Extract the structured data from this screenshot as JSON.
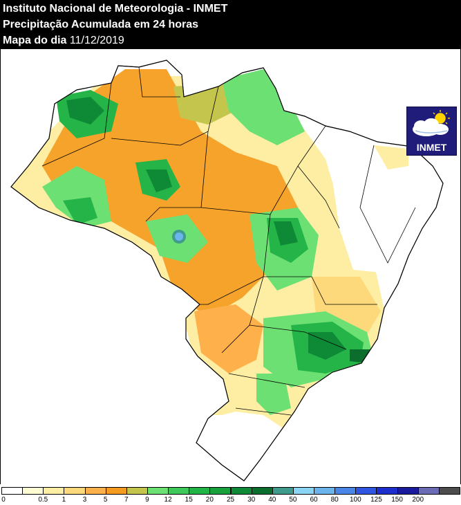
{
  "header": {
    "line1": "Instituto Nacional de Meteorologia - INMET",
    "line2": "Precipitação Acumulada em 24 horas",
    "line3_prefix": "Mapa do dia ",
    "date": "11/12/2019"
  },
  "logo": {
    "text": "INMET",
    "icon": "sun-cloud-icon"
  },
  "legend": {
    "colors": [
      "#ffffff",
      "#fefcd3",
      "#fdeea4",
      "#fed97c",
      "#feb04a",
      "#f69b21",
      "#c4c54c",
      "#6de073",
      "#3ec95a",
      "#21b447",
      "#18a13d",
      "#0e8a36",
      "#0b6e2d",
      "#3f9b8b",
      "#8ad4f4",
      "#6cb4ec",
      "#4a86e8",
      "#3055e0",
      "#1c2fcc",
      "#1a1a9c",
      "#6b6bb4",
      "#4d4d4d"
    ],
    "ticks": [
      "0",
      "0.5",
      "1",
      "3",
      "5",
      "7",
      "9",
      "12",
      "15",
      "20",
      "25",
      "30",
      "40",
      "50",
      "60",
      "80",
      "100",
      "125",
      "150",
      "200"
    ]
  },
  "colors": {
    "light_yellow": "#fdeea4",
    "orange": "#f6a32c",
    "olive": "#c4c54c",
    "light_green": "#6de073",
    "green": "#24b447",
    "dark_green": "#0e8a36",
    "blue": "#6cb4ec"
  }
}
